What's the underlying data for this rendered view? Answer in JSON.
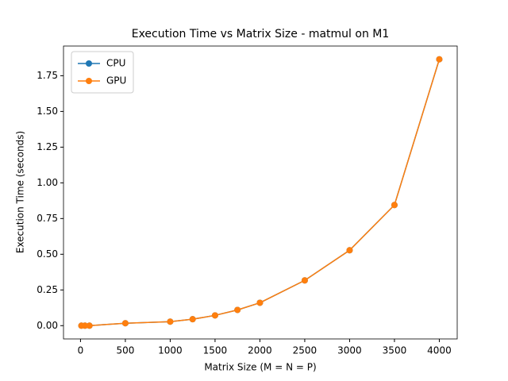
{
  "chart_data": {
    "type": "line",
    "title": "Execution Time vs Matrix Size - matmul on M1",
    "x_label": "Matrix Size (M = N = P)",
    "y_label": "Execution Time (seconds)",
    "x": [
      10,
      50,
      100,
      500,
      1000,
      1250,
      1500,
      1750,
      2000,
      2500,
      3000,
      3500,
      4000
    ],
    "series": [
      {
        "name": "CPU",
        "color": "#1f77b4",
        "values": [
          0.0,
          0.0,
          0.0,
          0.017,
          0.028,
          0.045,
          0.072,
          0.11,
          0.16,
          0.317,
          0.528,
          0.845,
          1.865
        ]
      },
      {
        "name": "GPU",
        "color": "#ff7f0e",
        "values": [
          0.0,
          0.0,
          0.0,
          0.017,
          0.028,
          0.045,
          0.072,
          0.11,
          0.16,
          0.317,
          0.528,
          0.845,
          1.865
        ]
      }
    ],
    "xlim": [
      -189.5,
      4199.5
    ],
    "xticks": [
      0,
      500,
      1000,
      1500,
      2000,
      2500,
      3000,
      3500,
      4000
    ],
    "ylim": [
      -0.093,
      1.958
    ],
    "yticks": [
      {
        "value": 0,
        "label": "0.00"
      },
      {
        "value": 0.25,
        "label": "0.25"
      },
      {
        "value": 0.5,
        "label": "0.50"
      },
      {
        "value": 0.75,
        "label": "0.75"
      },
      {
        "value": 1,
        "label": "1.00"
      },
      {
        "value": 1.25,
        "label": "1.25"
      },
      {
        "value": 1.5,
        "label": "1.50"
      },
      {
        "value": 1.75,
        "label": "1.75"
      }
    ],
    "legend": "upper left",
    "grid": false
  }
}
